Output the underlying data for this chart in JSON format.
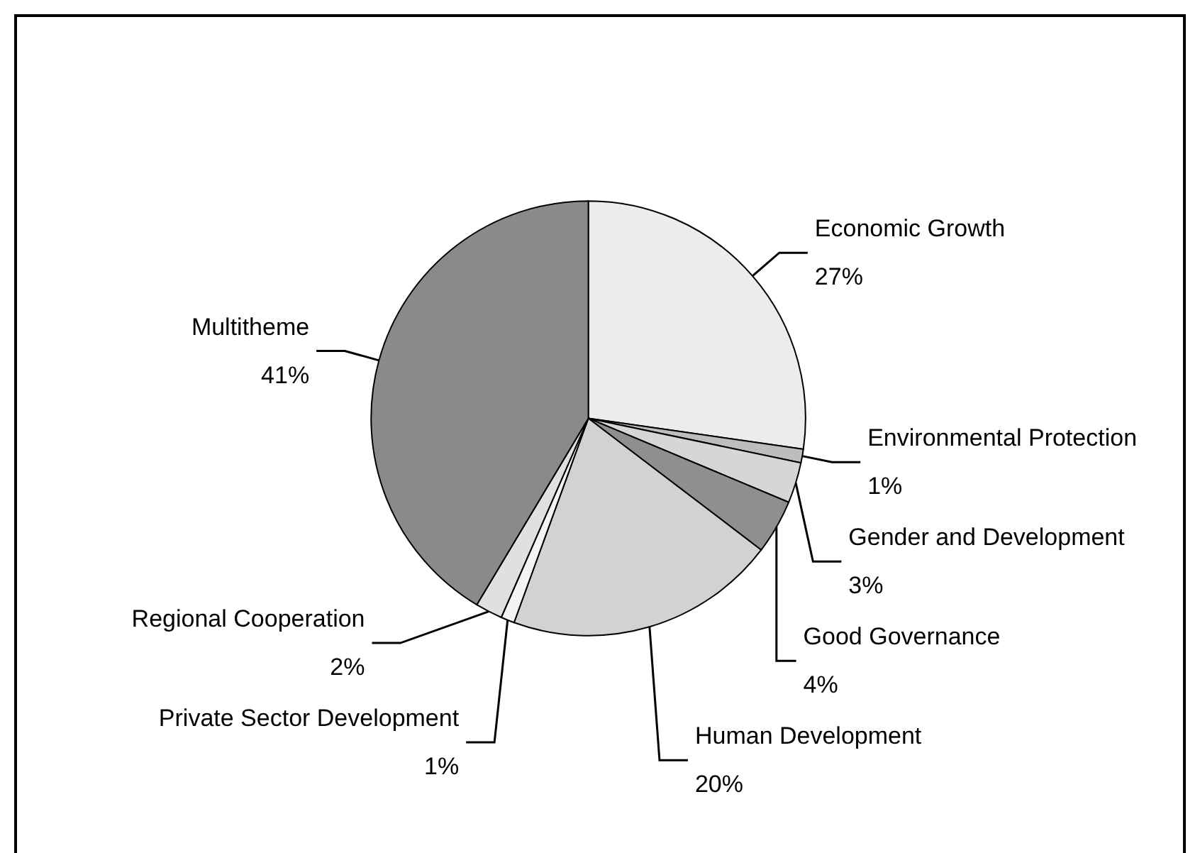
{
  "chart_data": {
    "type": "pie",
    "categories": [
      "Economic Growth",
      "Environmental Protection",
      "Gender and Development",
      "Good Governance",
      "Human Development",
      "Private Sector Development",
      "Regional Cooperation",
      "Multitheme"
    ],
    "values": [
      27,
      1,
      3,
      4,
      20,
      1,
      2,
      41
    ],
    "value_labels": [
      "27%",
      "1%",
      "3%",
      "4%",
      "20%",
      "1%",
      "2%",
      "41%"
    ],
    "colors": [
      "#ececec",
      "#bdbdbd",
      "#d6d6d6",
      "#8f8f8f",
      "#d2d2d2",
      "#f4f4f4",
      "#e0e0e0",
      "#8a8a8a"
    ],
    "legend": false
  }
}
